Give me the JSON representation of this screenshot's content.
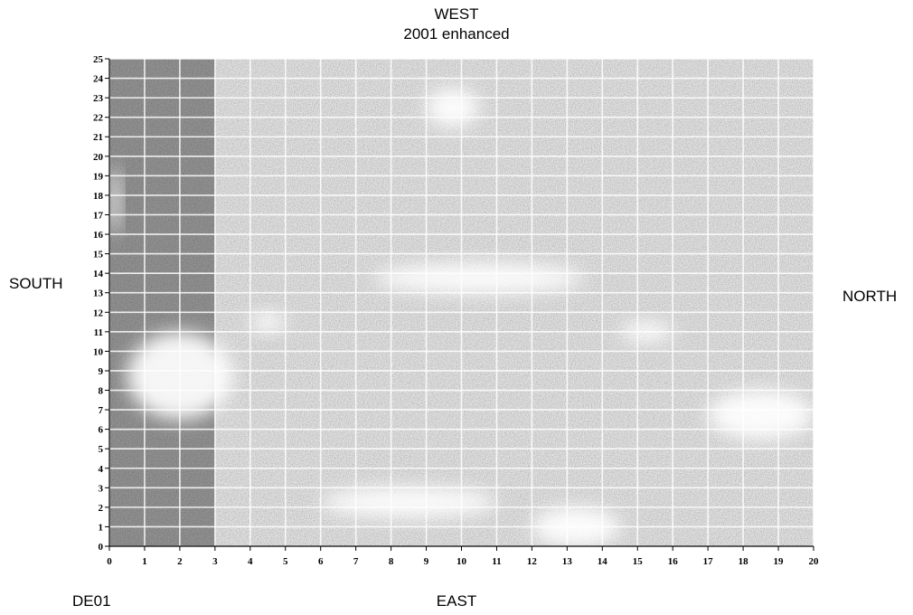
{
  "labels": {
    "top_line1": "WEST",
    "top_line2": "2001 enhanced",
    "left": "SOUTH",
    "right": "NORTH",
    "bottom": "EAST",
    "corner": "DE01"
  },
  "chart_data": {
    "type": "heatmap",
    "title": "",
    "xlabel": "",
    "ylabel": "",
    "x_ticks": [
      0,
      1,
      2,
      3,
      4,
      5,
      6,
      7,
      8,
      9,
      10,
      11,
      12,
      13,
      14,
      15,
      16,
      17,
      18,
      19,
      20
    ],
    "y_ticks": [
      0,
      1,
      2,
      3,
      4,
      5,
      6,
      7,
      8,
      9,
      10,
      11,
      12,
      13,
      14,
      15,
      16,
      17,
      18,
      19,
      20,
      21,
      22,
      23,
      24,
      25
    ],
    "xlim": [
      0,
      20
    ],
    "ylim": [
      0,
      25
    ],
    "grid": true,
    "colorscale": "grayscale",
    "dark_band_columns": [
      0,
      3
    ],
    "bright_regions": [
      {
        "x": [
          0,
          0.3
        ],
        "y": [
          16,
          19.5
        ]
      },
      {
        "x": [
          0.5,
          3.5
        ],
        "y": [
          6.5,
          11
        ]
      },
      {
        "x": [
          4,
          5
        ],
        "y": [
          11,
          12
        ]
      },
      {
        "x": [
          7.5,
          13.5
        ],
        "y": [
          13,
          14.5
        ]
      },
      {
        "x": [
          9,
          10.5
        ],
        "y": [
          21.5,
          23.5
        ]
      },
      {
        "x": [
          14.5,
          16
        ],
        "y": [
          10.5,
          11.5
        ]
      },
      {
        "x": [
          17,
          20
        ],
        "y": [
          5.5,
          8
        ]
      },
      {
        "x": [
          6,
          11
        ],
        "y": [
          1.5,
          3
        ]
      },
      {
        "x": [
          12,
          14.5
        ],
        "y": [
          0,
          2
        ]
      }
    ]
  }
}
